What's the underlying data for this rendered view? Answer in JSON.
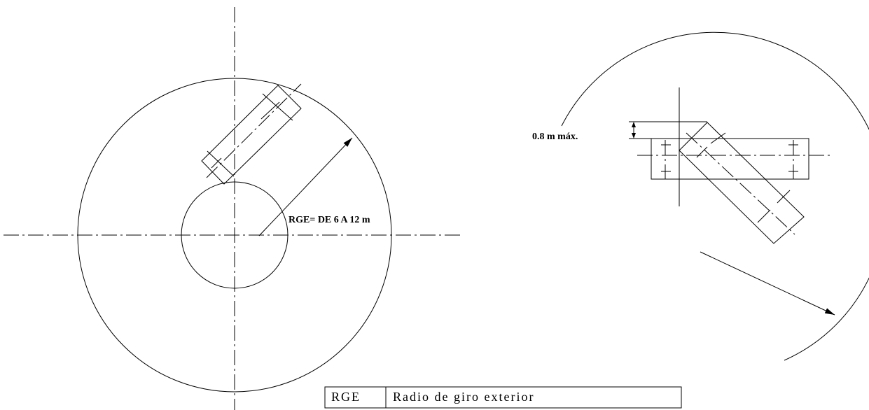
{
  "labels": {
    "radius": "RGE= DE 6 A 12 m",
    "offset": "0.8 m máx."
  },
  "legend": {
    "rows": [
      [
        "RGE",
        "Radio de giro exterior"
      ]
    ]
  }
}
